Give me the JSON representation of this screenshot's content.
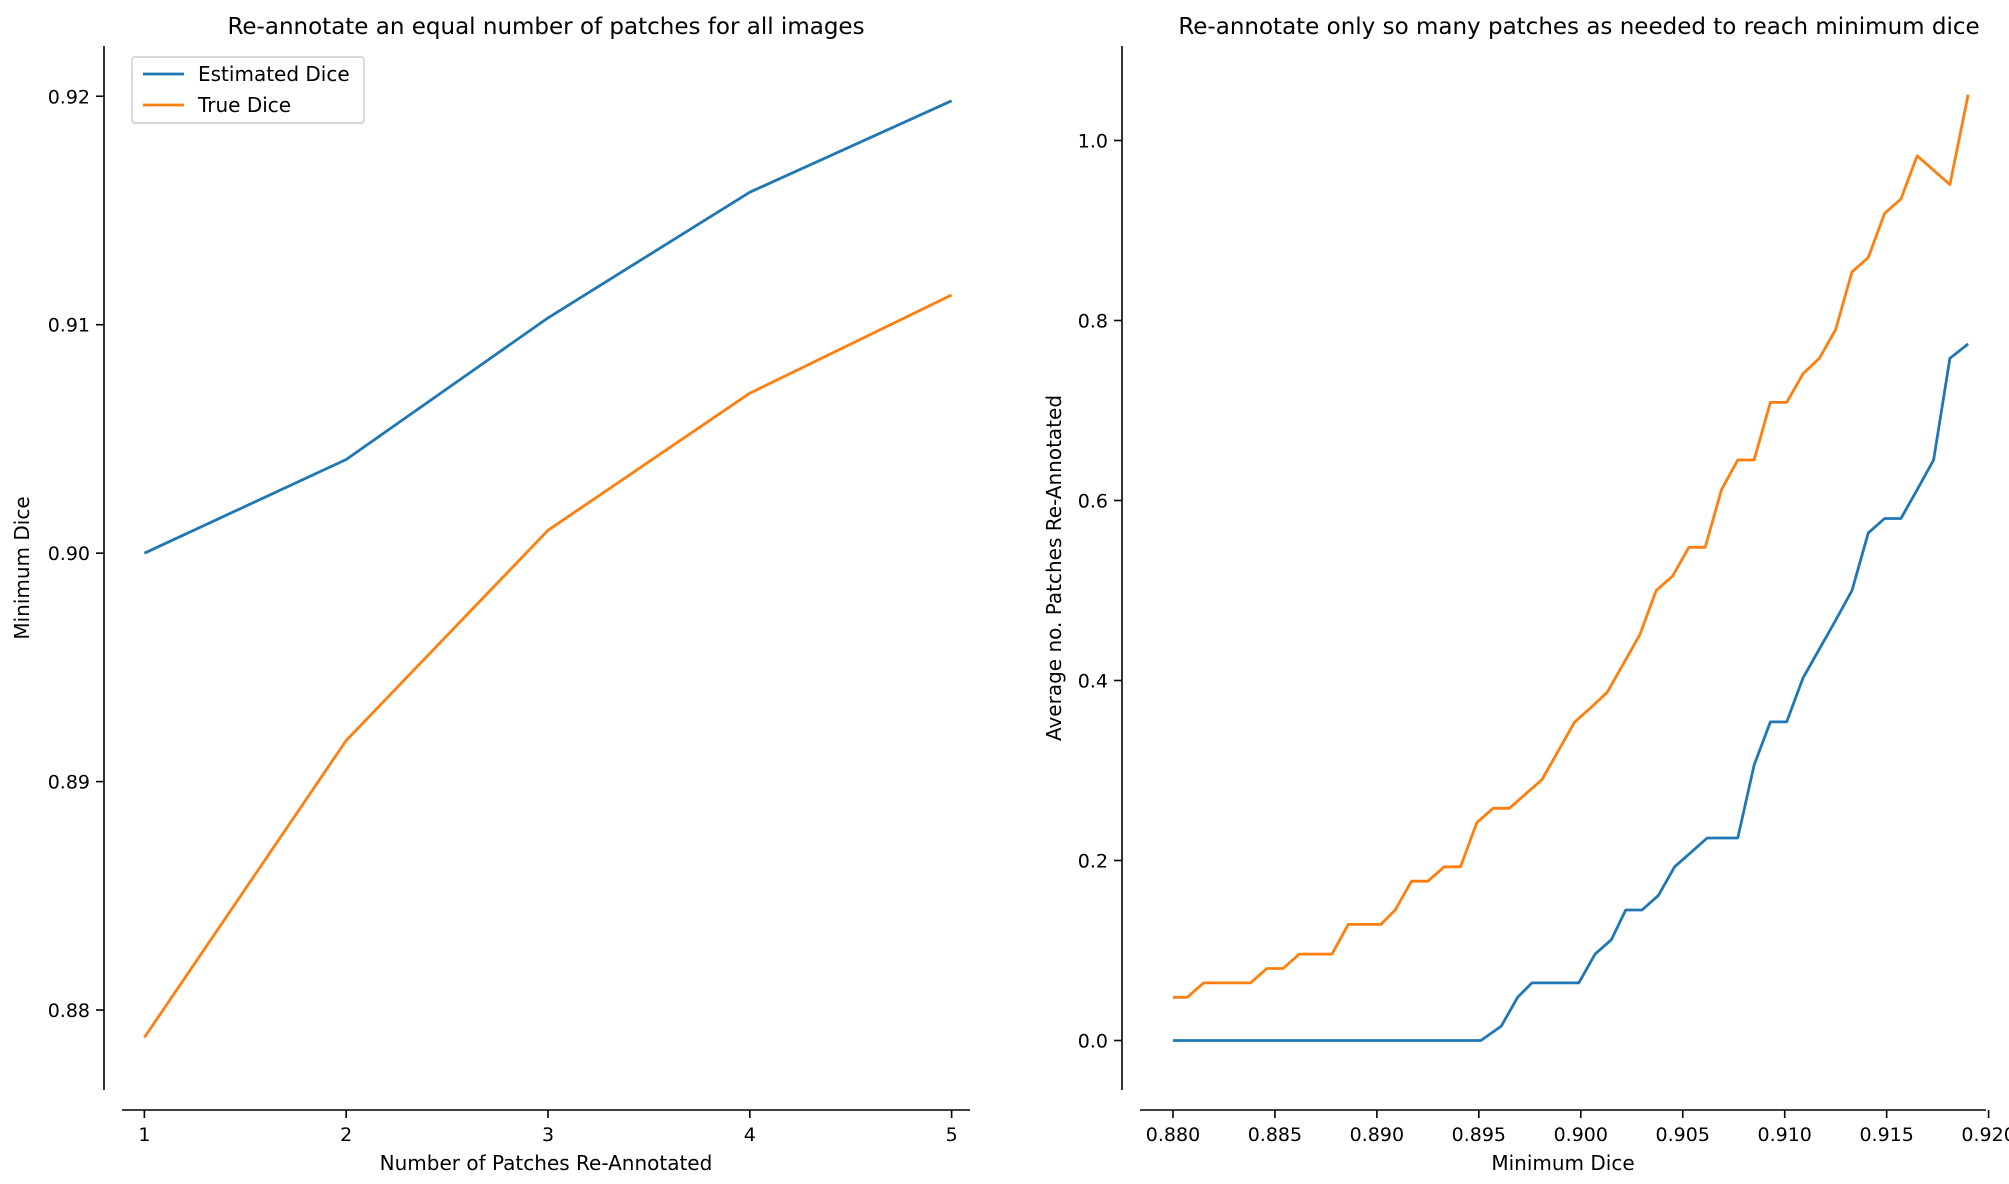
{
  "chart_data": [
    {
      "type": "line",
      "title": "Re-annotate an equal number of patches for all images",
      "xlabel": "Number of Patches Re-Annotated",
      "ylabel": "Minimum Dice",
      "xlim": [
        0.8,
        5.2
      ],
      "ylim": [
        0.8765,
        0.9222
      ],
      "xticks": [
        1,
        2,
        3,
        4,
        5
      ],
      "xtick_labels": [
        "1",
        "2",
        "3",
        "4",
        "5"
      ],
      "yticks": [
        0.88,
        0.89,
        0.9,
        0.91,
        0.92
      ],
      "ytick_labels": [
        "0.88",
        "0.89",
        "0.90",
        "0.91",
        "0.92"
      ],
      "legend_position": "top-left",
      "grid": false,
      "x": [
        1,
        2,
        3,
        4,
        5
      ],
      "series": [
        {
          "name": "Estimated Dice",
          "color": "#1f77b4",
          "values": [
            0.9,
            0.9041,
            0.9103,
            0.9158,
            0.9198
          ]
        },
        {
          "name": "True Dice",
          "color": "#ff7f0e",
          "values": [
            0.8788,
            0.8918,
            0.901,
            0.907,
            0.9113
          ]
        }
      ]
    },
    {
      "type": "line",
      "title": "Re-annotate only so many patches as needed to reach minimum dice",
      "xlabel": "Minimum Dice",
      "ylabel": "Average no. Patches Re-Annotated",
      "xlim": [
        0.8775,
        0.921
      ],
      "ylim": [
        -0.055,
        1.105
      ],
      "xticks": [
        0.88,
        0.885,
        0.89,
        0.895,
        0.9,
        0.905,
        0.91,
        0.915,
        0.92
      ],
      "xtick_labels": [
        "0.880",
        "0.885",
        "0.890",
        "0.895",
        "0.900",
        "0.905",
        "0.910",
        "0.915",
        "0.920"
      ],
      "yticks": [
        0.0,
        0.2,
        0.4,
        0.6,
        0.8,
        1.0
      ],
      "ytick_labels": [
        "0.0",
        "0.2",
        "0.4",
        "0.6",
        "0.8",
        "1.0"
      ],
      "grid": false,
      "series": [
        {
          "color": "#1f77b4",
          "x": [
            0.88,
            0.8951,
            0.8961,
            0.8969,
            0.8976,
            0.8999,
            0.9007,
            0.9015,
            0.9022,
            0.903,
            0.9038,
            0.9046,
            0.9054,
            0.9062,
            0.9069,
            0.9077,
            0.9085,
            0.9093,
            0.9101,
            0.9109,
            0.9117,
            0.9125,
            0.9133,
            0.9141,
            0.9149,
            0.9157,
            0.9165,
            0.9173,
            0.9181,
            0.919
          ],
          "values": [
            0.0,
            0.0,
            0.016,
            0.048,
            0.064,
            0.064,
            0.096,
            0.112,
            0.145,
            0.145,
            0.161,
            0.193,
            0.209,
            0.225,
            0.225,
            0.225,
            0.306,
            0.354,
            0.354,
            0.403,
            0.435,
            0.467,
            0.5,
            0.564,
            0.58,
            0.58,
            0.612,
            0.645,
            0.758,
            0.774
          ]
        },
        {
          "color": "#ff7f0e",
          "x": [
            0.88,
            0.8807,
            0.8815,
            0.8823,
            0.883,
            0.8838,
            0.8846,
            0.8854,
            0.8862,
            0.887,
            0.8878,
            0.8886,
            0.8894,
            0.8902,
            0.8909,
            0.8917,
            0.8925,
            0.8933,
            0.8941,
            0.8949,
            0.8957,
            0.8965,
            0.8973,
            0.8981,
            0.8989,
            0.8997,
            0.9005,
            0.9013,
            0.9021,
            0.9029,
            0.9037,
            0.9045,
            0.9053,
            0.9061,
            0.9069,
            0.9077,
            0.9085,
            0.9093,
            0.9101,
            0.9109,
            0.9117,
            0.9125,
            0.9133,
            0.9141,
            0.9149,
            0.9157,
            0.9165,
            0.9181,
            0.919
          ],
          "values": [
            0.048,
            0.048,
            0.064,
            0.064,
            0.064,
            0.064,
            0.08,
            0.08,
            0.096,
            0.096,
            0.096,
            0.129,
            0.129,
            0.129,
            0.145,
            0.177,
            0.177,
            0.193,
            0.193,
            0.242,
            0.258,
            0.258,
            0.274,
            0.29,
            0.322,
            0.354,
            0.37,
            0.387,
            0.419,
            0.451,
            0.5,
            0.516,
            0.548,
            0.548,
            0.612,
            0.645,
            0.645,
            0.709,
            0.709,
            0.741,
            0.758,
            0.79,
            0.854,
            0.87,
            0.919,
            0.935,
            0.983,
            0.951,
            1.051
          ]
        }
      ]
    }
  ]
}
